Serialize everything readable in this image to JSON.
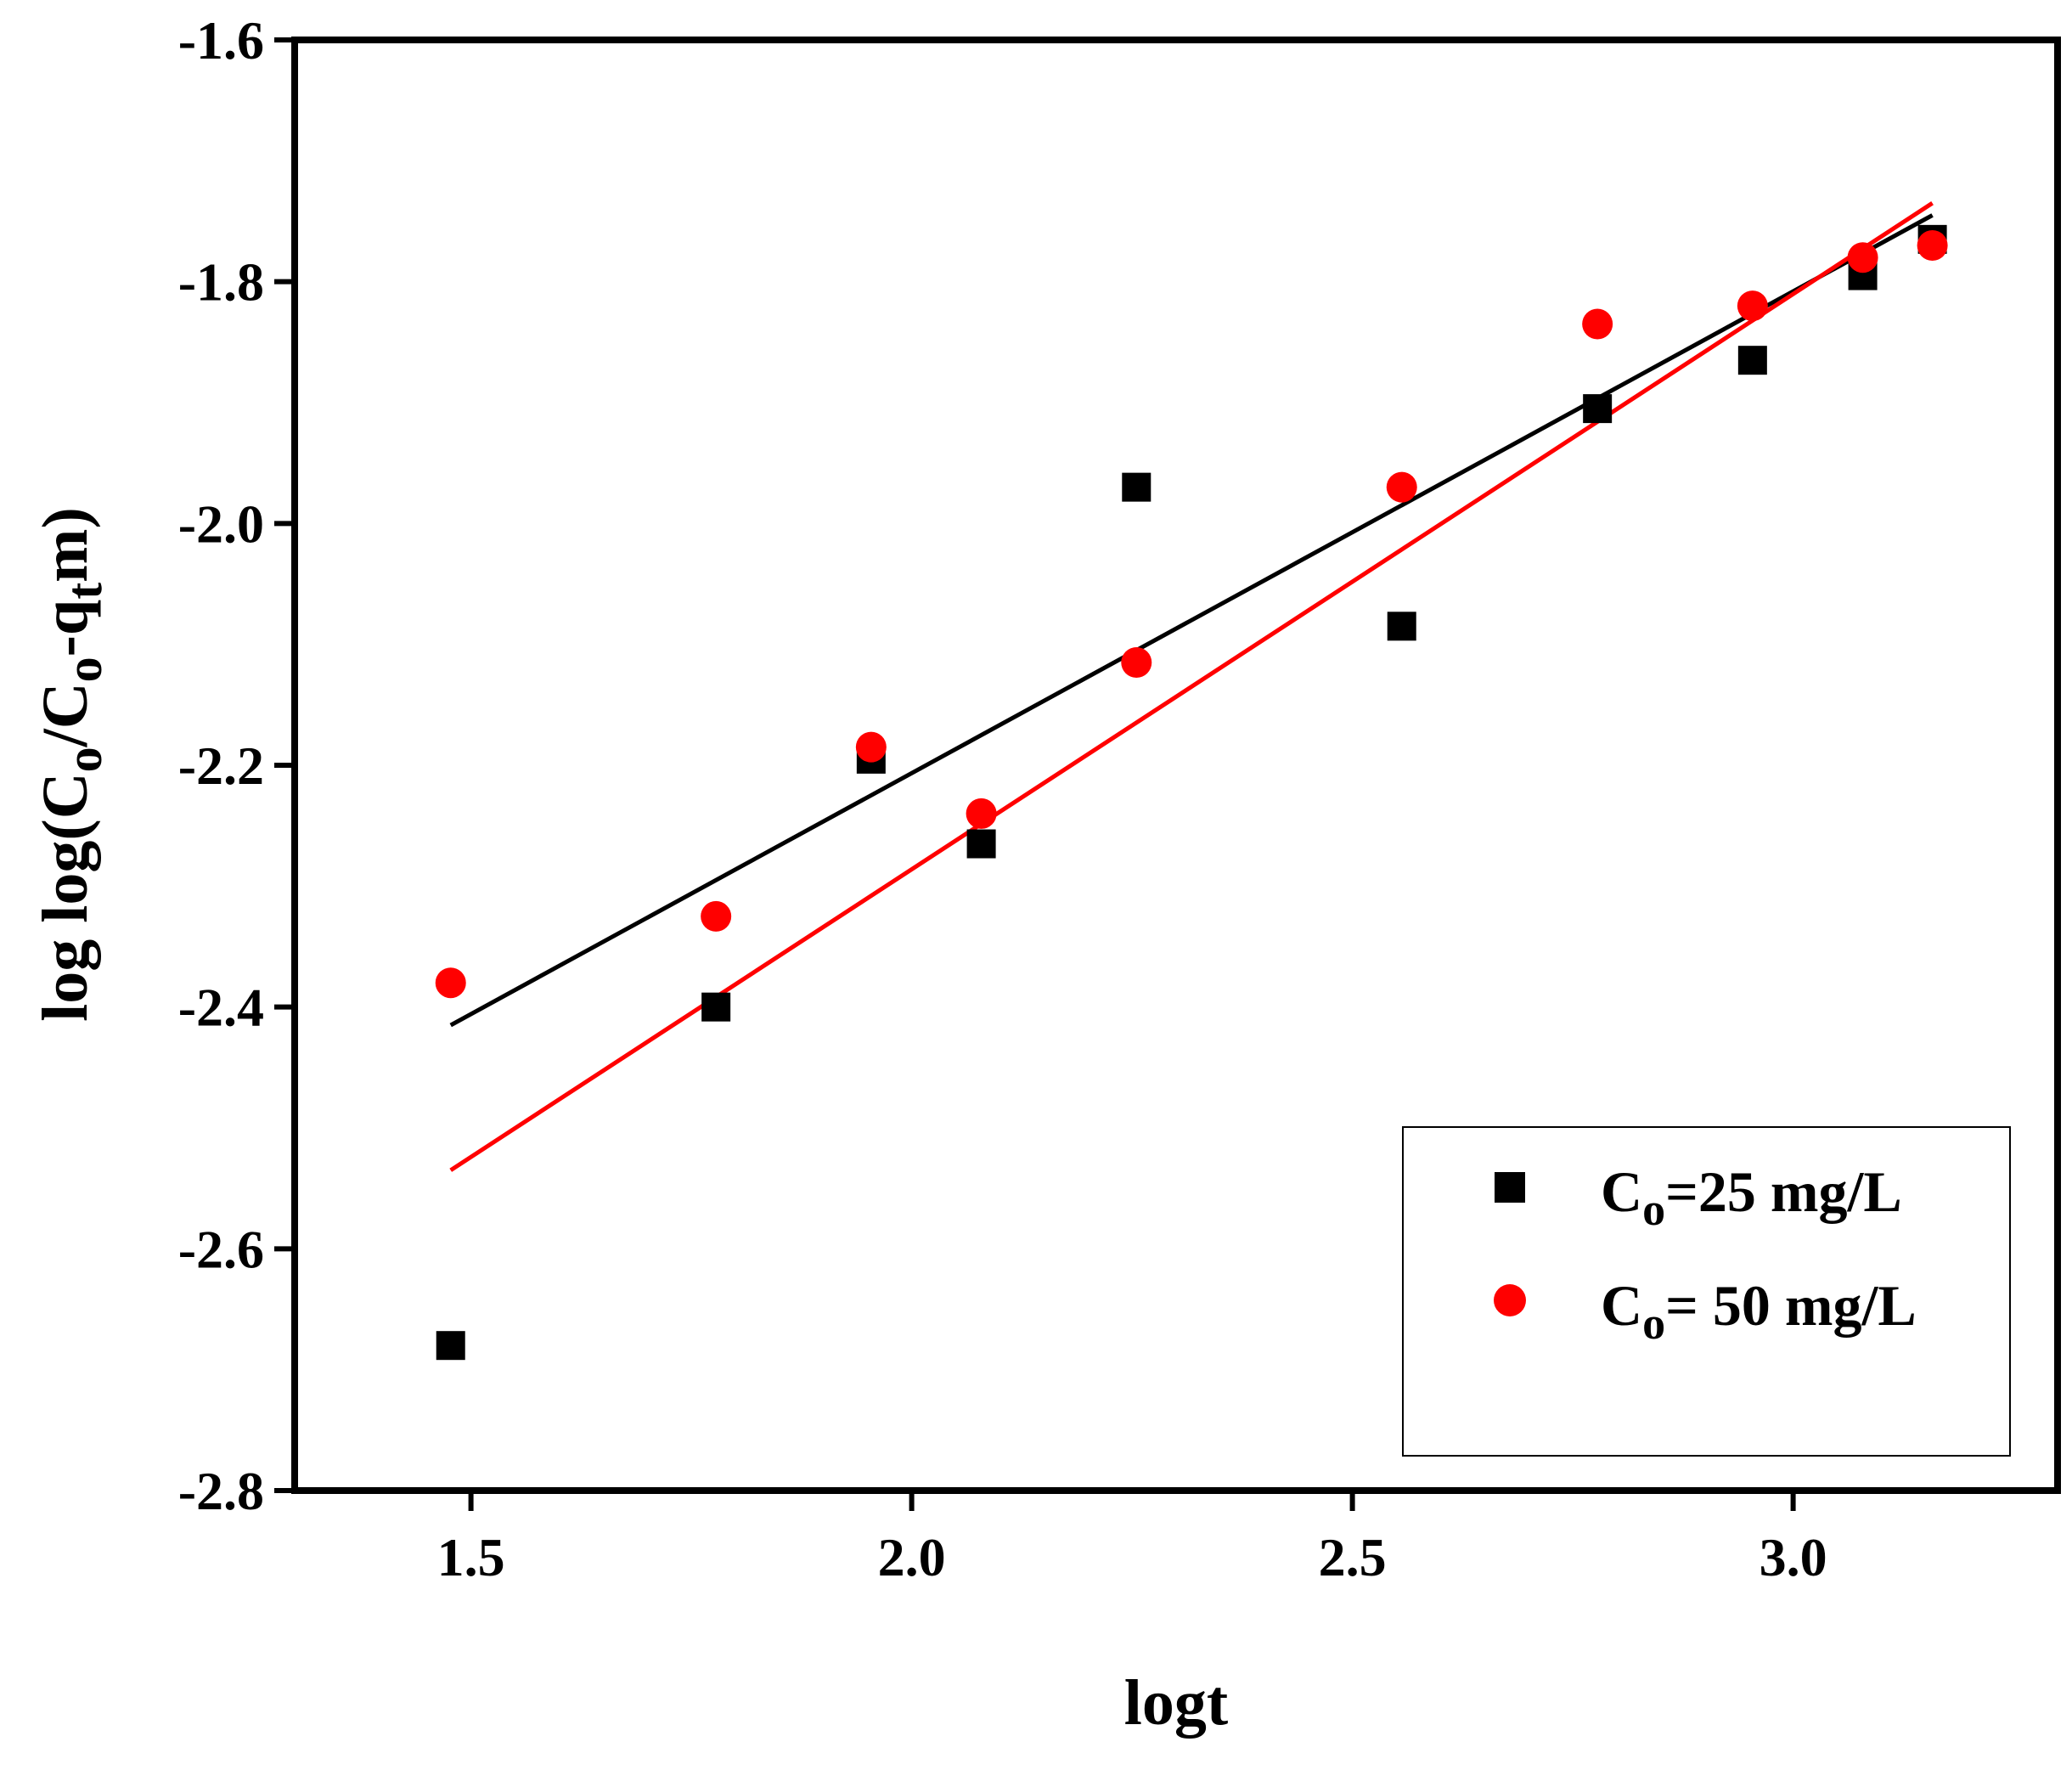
{
  "chart_data": {
    "type": "scatter",
    "title": "",
    "xlabel": "logt",
    "ylabel": "log log(C",
    "ylabel_parts": [
      "log log(C",
      "o",
      "/C",
      "o",
      "-q",
      "t",
      "m)"
    ],
    "xlim": [
      1.3,
      3.3
    ],
    "ylim": [
      -2.8,
      -1.6
    ],
    "xticks": [
      1.5,
      2.0,
      2.5,
      3.0
    ],
    "xtick_labels": [
      "1.5",
      "2.0",
      "2.5",
      "3.0"
    ],
    "yticks": [
      -2.8,
      -2.6,
      -2.4,
      -2.2,
      -2.0,
      -1.8,
      -1.6
    ],
    "ytick_labels": [
      "-2.8",
      "-2.6",
      "-2.4",
      "-2.2",
      "-2.0",
      "-1.8",
      "-1.6"
    ],
    "legend_position": "bottom-right",
    "series": [
      {
        "name": "C",
        "subscript": "o",
        "label_rest": "=25 mg/L",
        "marker": "square",
        "color": "#000000",
        "x": [
          1.477,
          1.778,
          1.954,
          2.079,
          2.255,
          2.556,
          2.778,
          2.954,
          3.079,
          3.158
        ],
        "y": [
          -2.68,
          -2.4,
          -2.195,
          -2.265,
          -1.97,
          -2.085,
          -1.905,
          -1.865,
          -1.795,
          -1.765
        ],
        "fit": {
          "x": [
            1.477,
            3.158
          ],
          "y": [
            -2.415,
            -1.745
          ]
        }
      },
      {
        "name": "C",
        "subscript": "o",
        "label_rest": "= 50 mg/L",
        "marker": "circle",
        "color": "#ff0000",
        "x": [
          1.477,
          1.778,
          1.954,
          2.079,
          2.255,
          2.556,
          2.778,
          2.954,
          3.079,
          3.158
        ],
        "y": [
          -2.38,
          -2.325,
          -2.185,
          -2.24,
          -2.115,
          -1.97,
          -1.835,
          -1.82,
          -1.78,
          -1.77
        ],
        "fit": {
          "x": [
            1.477,
            3.158
          ],
          "y": [
            -2.535,
            -1.735
          ]
        }
      }
    ]
  }
}
